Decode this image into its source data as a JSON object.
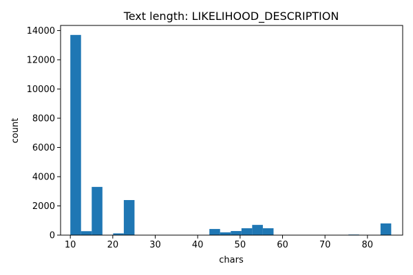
{
  "chart_data": {
    "type": "bar",
    "title": "Text length: LIKELIHOOD_DESCRIPTION",
    "xlabel": "chars",
    "ylabel": "count",
    "xlim": [
      7.7,
      88.3
    ],
    "ylim": [
      0,
      14350
    ],
    "xticks": [
      10,
      20,
      30,
      40,
      50,
      60,
      70,
      80
    ],
    "yticks": [
      0,
      2000,
      4000,
      6000,
      8000,
      10000,
      12000,
      14000
    ],
    "bin_width": 2.52,
    "bin_start": 10.0,
    "bins": [
      {
        "x0": 10.0,
        "value": 13700
      },
      {
        "x0": 12.52,
        "value": 270
      },
      {
        "x0": 15.04,
        "value": 3300
      },
      {
        "x0": 17.56,
        "value": 0
      },
      {
        "x0": 20.08,
        "value": 120
      },
      {
        "x0": 22.6,
        "value": 2400
      },
      {
        "x0": 25.12,
        "value": 0
      },
      {
        "x0": 27.64,
        "value": 0
      },
      {
        "x0": 30.16,
        "value": 0
      },
      {
        "x0": 32.68,
        "value": 0
      },
      {
        "x0": 35.2,
        "value": 0
      },
      {
        "x0": 37.72,
        "value": 0
      },
      {
        "x0": 40.24,
        "value": 0
      },
      {
        "x0": 42.76,
        "value": 420
      },
      {
        "x0": 45.28,
        "value": 190
      },
      {
        "x0": 47.8,
        "value": 280
      },
      {
        "x0": 50.32,
        "value": 470
      },
      {
        "x0": 52.84,
        "value": 700
      },
      {
        "x0": 55.36,
        "value": 470
      },
      {
        "x0": 57.88,
        "value": 0
      },
      {
        "x0": 60.4,
        "value": 0
      },
      {
        "x0": 62.92,
        "value": 0
      },
      {
        "x0": 65.44,
        "value": 0
      },
      {
        "x0": 67.96,
        "value": 0
      },
      {
        "x0": 70.48,
        "value": 0
      },
      {
        "x0": 73.0,
        "value": 0
      },
      {
        "x0": 75.52,
        "value": 40
      },
      {
        "x0": 78.04,
        "value": 0
      },
      {
        "x0": 80.56,
        "value": 0
      },
      {
        "x0": 83.08,
        "value": 800
      }
    ],
    "bar_color": "#1f77b4",
    "grid": false
  }
}
